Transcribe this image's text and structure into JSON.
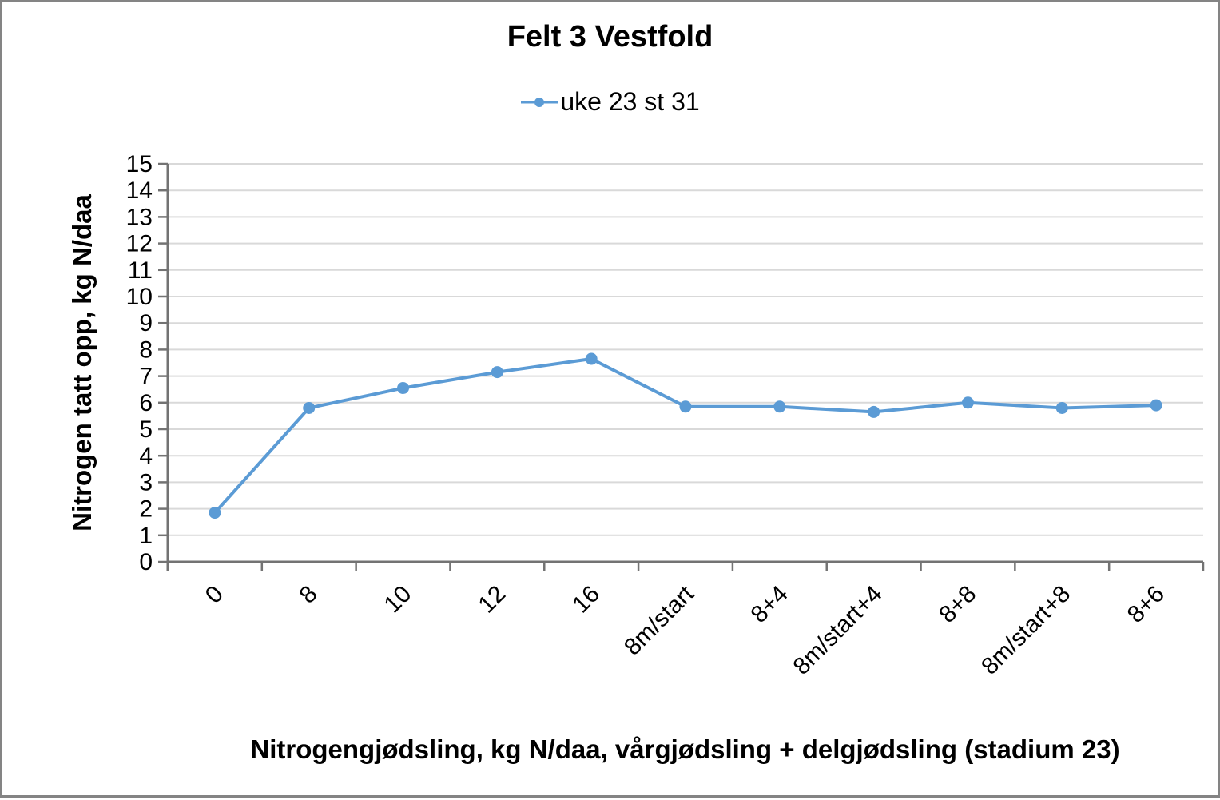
{
  "page": {
    "background": "#ffffff",
    "border_color": "#848484"
  },
  "chart_data": {
    "type": "line",
    "title": "Felt 3 Vestfold",
    "xlabel": "Nitrogengjødsling, kg N/daa, vårgjødsling + delgjødsling (stadium 23)",
    "ylabel": "Nitrogen tatt opp, kg N/daa",
    "categories": [
      "0",
      "8",
      "10",
      "12",
      "16",
      "8m/start",
      "8+4",
      "8m/start+4",
      "8+8",
      "8m/start+8",
      "8+6"
    ],
    "series": [
      {
        "name": "uke 23 st 31",
        "color": "#5B9BD5",
        "marker": "circle",
        "values": [
          1.85,
          5.8,
          6.55,
          7.15,
          7.65,
          5.85,
          5.85,
          5.65,
          6.0,
          5.8,
          5.9
        ]
      }
    ],
    "ylim": [
      0,
      15
    ],
    "ytick_step": 1,
    "yticks": [
      0,
      1,
      2,
      3,
      4,
      5,
      6,
      7,
      8,
      9,
      10,
      11,
      12,
      13,
      14,
      15
    ],
    "grid": "horizontal",
    "legend_position": "top",
    "axis_color": "#737373",
    "gridline_color": "#D9D9D9",
    "xtick_rotation_deg": 45
  }
}
